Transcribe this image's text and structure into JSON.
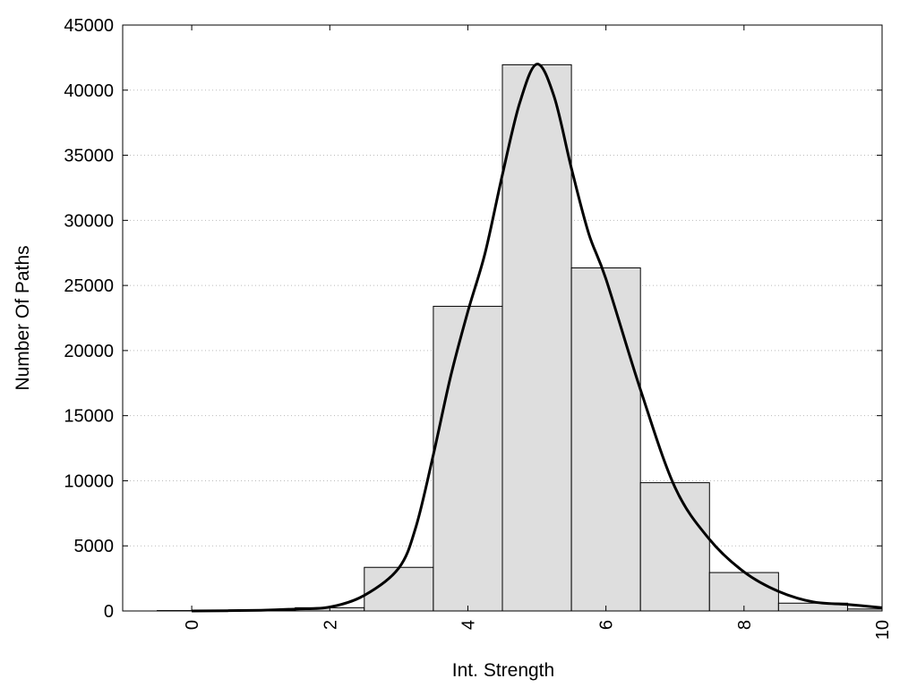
{
  "chart_data": {
    "type": "bar",
    "title": "",
    "xlabel": "Int. Strength",
    "ylabel": "Number Of Paths",
    "xlim": [
      -1,
      10
    ],
    "ylim": [
      0,
      45000
    ],
    "x_ticks": [
      0,
      2,
      4,
      6,
      8,
      10
    ],
    "y_ticks": [
      0,
      5000,
      10000,
      15000,
      20000,
      25000,
      30000,
      35000,
      40000,
      45000
    ],
    "grid": "horizontal dotted",
    "bar_width": 1,
    "bars": [
      {
        "x": 0,
        "value": 30
      },
      {
        "x": 1,
        "value": 60
      },
      {
        "x": 2,
        "value": 250
      },
      {
        "x": 3,
        "value": 3350
      },
      {
        "x": 4,
        "value": 23400
      },
      {
        "x": 5,
        "value": 41950
      },
      {
        "x": 6,
        "value": 26350
      },
      {
        "x": 7,
        "value": 9850
      },
      {
        "x": 8,
        "value": 2950
      },
      {
        "x": 9,
        "value": 600
      },
      {
        "x": 10,
        "value": 150
      }
    ],
    "curve": {
      "x": [
        0,
        1,
        1.5,
        2,
        2.5,
        3,
        3.25,
        3.5,
        3.75,
        4,
        4.25,
        4.5,
        4.75,
        5,
        5.25,
        5.5,
        5.75,
        6,
        6.5,
        7,
        7.5,
        8,
        8.5,
        9,
        9.5,
        10
      ],
      "y": [
        0,
        50,
        150,
        300,
        1200,
        3300,
        6500,
        12000,
        18000,
        23000,
        27500,
        33500,
        39000,
        42000,
        39500,
        34000,
        29000,
        25500,
        17000,
        9500,
        5500,
        3000,
        1500,
        700,
        500,
        250
      ]
    },
    "colors": {
      "bar_fill": "#dedede",
      "bar_stroke": "#000000",
      "curve": "#000000",
      "grid": "#bbbbbb"
    }
  }
}
